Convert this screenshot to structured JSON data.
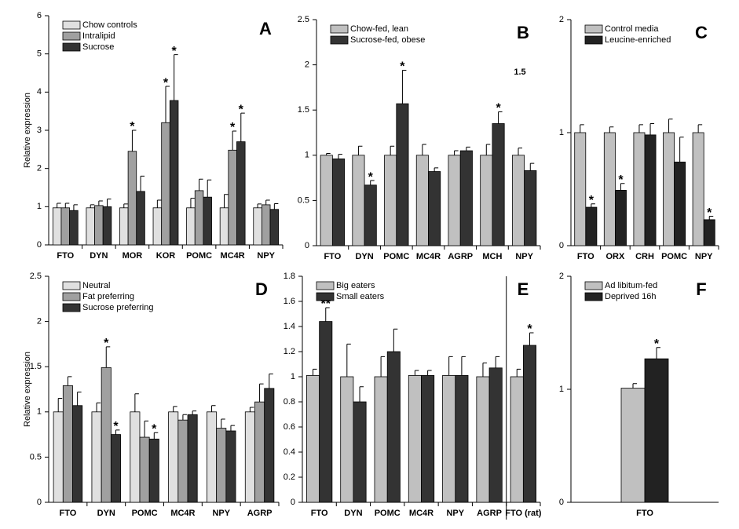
{
  "chart_data": [
    {
      "type": "bar",
      "label": "A",
      "ylabel": "Relative expression",
      "categories": [
        "FTO",
        "DYN",
        "MOR",
        "KOR",
        "POMC",
        "MC4R",
        "NPY"
      ],
      "ylim": [
        0,
        6
      ],
      "yticks": [
        0,
        1,
        2,
        3,
        4,
        5,
        6
      ],
      "series": [
        {
          "name": "Chow controls",
          "color": "#e0e0e0",
          "values": [
            0.97,
            0.97,
            0.97,
            0.97,
            0.97,
            0.97,
            0.97
          ],
          "errors": [
            0.12,
            0.08,
            0.1,
            0.2,
            0.25,
            0.35,
            0.1
          ],
          "annotations": [
            null,
            null,
            null,
            null,
            null,
            null,
            null
          ]
        },
        {
          "name": "Intralipid",
          "color": "#a0a0a0",
          "values": [
            0.97,
            1.03,
            2.45,
            3.2,
            1.42,
            2.48,
            1.05
          ],
          "errors": [
            0.12,
            0.12,
            0.55,
            0.95,
            0.3,
            0.5,
            0.12
          ],
          "annotations": [
            null,
            null,
            "*",
            "*",
            null,
            "*",
            null
          ]
        },
        {
          "name": "Sucrose",
          "color": "#333333",
          "values": [
            0.9,
            1.0,
            1.4,
            3.78,
            1.25,
            2.7,
            0.93
          ],
          "errors": [
            0.15,
            0.2,
            0.4,
            1.2,
            0.45,
            0.75,
            0.15
          ],
          "annotations": [
            null,
            null,
            null,
            "*",
            null,
            "*",
            null
          ]
        }
      ]
    },
    {
      "type": "bar",
      "label": "B",
      "annotation": "1.5",
      "categories": [
        "FTO",
        "DYN",
        "POMC",
        "MC4R",
        "AGRP",
        "MCH",
        "NPY"
      ],
      "ylim": [
        0,
        2.5
      ],
      "yticks": [
        0,
        0.5,
        1,
        1.5,
        2,
        2.5
      ],
      "series": [
        {
          "name": "Chow-fed, lean",
          "color": "#c0c0c0",
          "values": [
            1.0,
            1.0,
            1.0,
            1.0,
            1.0,
            1.0,
            1.0
          ],
          "errors": [
            0.02,
            0.1,
            0.1,
            0.12,
            0.05,
            0.12,
            0.08
          ],
          "annotations": [
            null,
            null,
            null,
            null,
            null,
            null,
            null
          ]
        },
        {
          "name": "Sucrose-fed, obese",
          "color": "#333333",
          "values": [
            0.96,
            0.67,
            1.57,
            0.82,
            1.05,
            1.35,
            0.83
          ],
          "errors": [
            0.05,
            0.05,
            0.37,
            0.04,
            0.04,
            0.13,
            0.08
          ],
          "annotations": [
            null,
            "*",
            "*",
            null,
            null,
            "*",
            null
          ]
        }
      ]
    },
    {
      "type": "bar",
      "label": "C",
      "categories": [
        "FTO",
        "ORX",
        "CRH",
        "POMC",
        "NPY"
      ],
      "ylim": [
        0,
        2
      ],
      "yticks": [
        0,
        1,
        2
      ],
      "series": [
        {
          "name": "Control media",
          "color": "#c0c0c0",
          "values": [
            1.0,
            1.0,
            1.0,
            1.0,
            1.0
          ],
          "errors": [
            0.07,
            0.05,
            0.07,
            0.12,
            0.07
          ],
          "annotations": [
            null,
            null,
            null,
            null,
            null
          ]
        },
        {
          "name": "Leucine-enriched",
          "color": "#222222",
          "values": [
            0.34,
            0.49,
            0.98,
            0.74,
            0.23
          ],
          "errors": [
            0.03,
            0.06,
            0.1,
            0.22,
            0.03
          ],
          "annotations": [
            "*",
            "*",
            null,
            null,
            "*"
          ]
        }
      ]
    },
    {
      "type": "bar",
      "label": "D",
      "ylabel": "Relative expression",
      "categories": [
        "FTO",
        "DYN",
        "POMC",
        "MC4R",
        "NPY",
        "AGRP"
      ],
      "ylim": [
        0,
        2.5
      ],
      "yticks": [
        0,
        0.5,
        1,
        1.5,
        2,
        2.5
      ],
      "series": [
        {
          "name": "Neutral",
          "color": "#e0e0e0",
          "values": [
            1.0,
            1.0,
            1.0,
            1.0,
            1.0,
            1.0
          ],
          "errors": [
            0.15,
            0.1,
            0.2,
            0.06,
            0.07,
            0.05
          ],
          "annotations": [
            null,
            null,
            null,
            null,
            null,
            null
          ]
        },
        {
          "name": "Fat preferring",
          "color": "#a0a0a0",
          "values": [
            1.29,
            1.49,
            0.72,
            0.91,
            0.82,
            1.11
          ],
          "errors": [
            0.1,
            0.23,
            0.18,
            0.06,
            0.1,
            0.2
          ],
          "annotations": [
            null,
            "*",
            null,
            null,
            null,
            null
          ]
        },
        {
          "name": "Sucrose preferring",
          "color": "#333333",
          "values": [
            1.07,
            0.75,
            0.7,
            0.97,
            0.79,
            1.26
          ],
          "errors": [
            0.15,
            0.05,
            0.07,
            0.04,
            0.06,
            0.16
          ],
          "annotations": [
            null,
            "*",
            "*",
            null,
            null,
            null
          ]
        }
      ]
    },
    {
      "type": "bar",
      "label": "E",
      "categories": [
        "FTO",
        "DYN",
        "POMC",
        "MC4R",
        "NPY",
        "AGRP",
        "FTO (rat)"
      ],
      "ylim": [
        0,
        1.8
      ],
      "yticks": [
        0,
        0.2,
        0.4,
        0.6,
        0.8,
        1,
        1.2,
        1.4,
        1.6,
        1.8
      ],
      "series": [
        {
          "name": "Big eaters",
          "color": "#c0c0c0",
          "values": [
            1.01,
            1.0,
            1.0,
            1.01,
            1.01,
            1.0,
            1.0
          ],
          "errors": [
            0.05,
            0.26,
            0.16,
            0.04,
            0.15,
            0.11,
            0.06
          ],
          "annotations": [
            null,
            null,
            null,
            null,
            null,
            null,
            null
          ]
        },
        {
          "name": "Small eaters",
          "color": "#333333",
          "values": [
            1.44,
            0.8,
            1.2,
            1.01,
            1.01,
            1.07,
            1.25
          ],
          "errors": [
            0.11,
            0.12,
            0.18,
            0.04,
            0.15,
            0.09,
            0.1
          ],
          "annotations": [
            "**",
            null,
            null,
            null,
            null,
            null,
            "*"
          ]
        }
      ]
    },
    {
      "type": "bar",
      "label": "F",
      "categories": [
        "FTO"
      ],
      "ylim": [
        0,
        2
      ],
      "yticks": [
        0,
        1,
        2
      ],
      "series": [
        {
          "name": "Ad libitum-fed",
          "color": "#c0c0c0",
          "values": [
            1.01
          ],
          "errors": [
            0.04
          ],
          "annotations": [
            null
          ]
        },
        {
          "name": "Deprived 16h",
          "color": "#222222",
          "values": [
            1.27
          ],
          "errors": [
            0.1
          ],
          "annotations": [
            "*"
          ]
        }
      ]
    }
  ]
}
